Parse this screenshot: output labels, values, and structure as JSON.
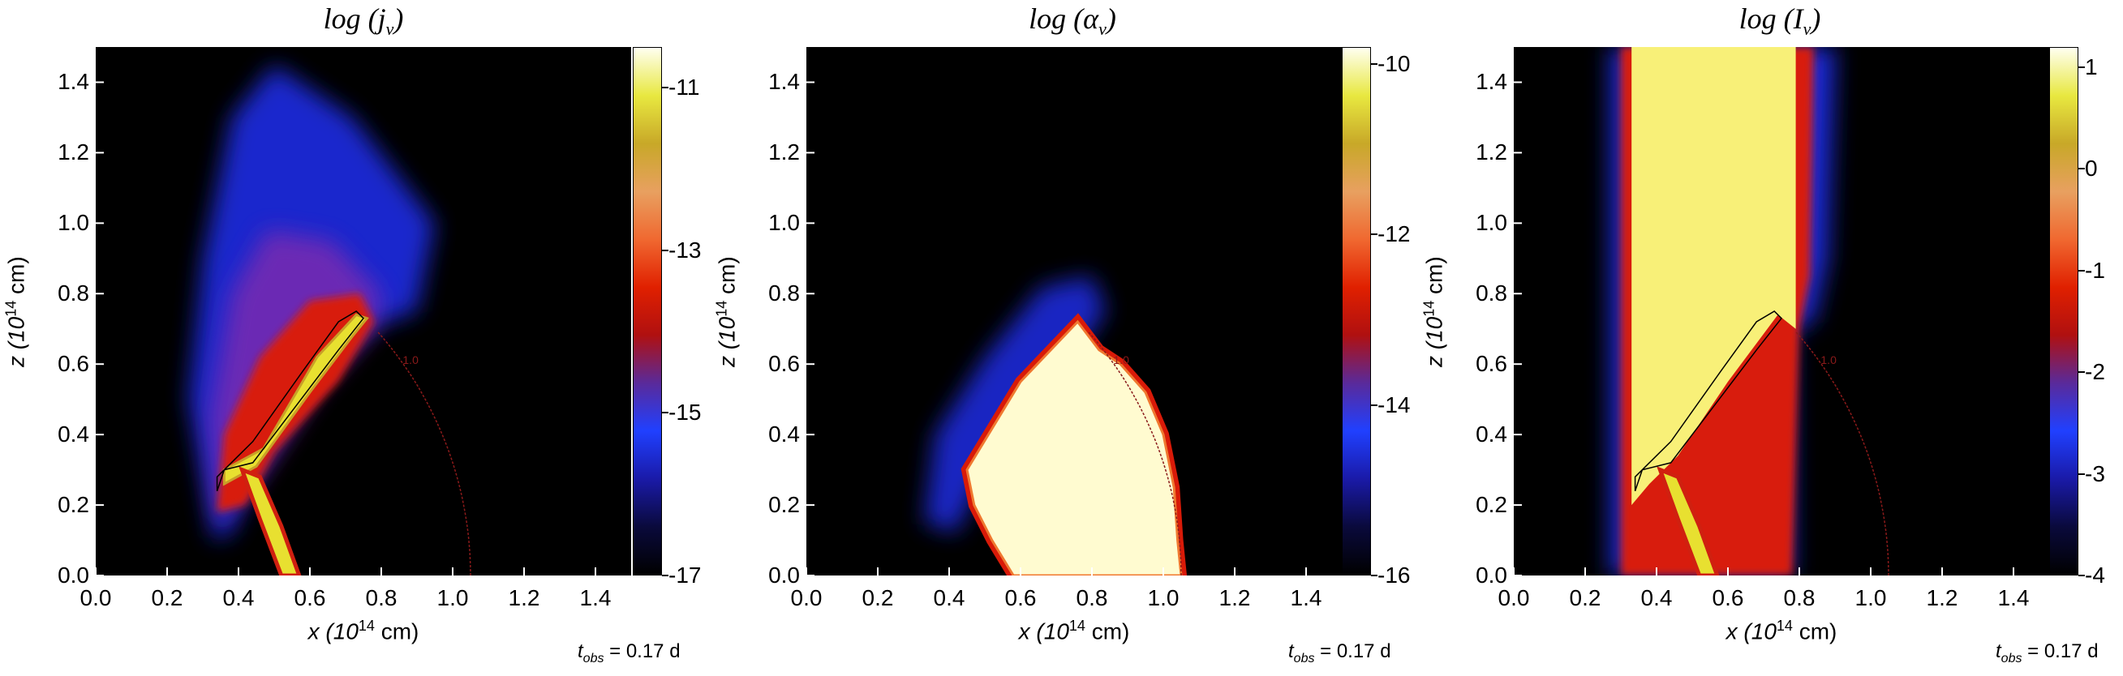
{
  "chart_data": [
    {
      "type": "heatmap",
      "title": "log (j",
      "title_sub": "ν",
      "title_close": ")",
      "xlabel": "x (10",
      "xlabel_exp": "14",
      "xlabel_unit": " cm)",
      "ylabel": "z (10",
      "ylabel_exp": "14",
      "ylabel_unit": " cm)",
      "x_ticks": [
        "0.0",
        "0.2",
        "0.4",
        "0.6",
        "0.8",
        "1.0",
        "1.2",
        "1.4"
      ],
      "y_ticks": [
        "0.0",
        "0.2",
        "0.4",
        "0.6",
        "0.8",
        "1.0",
        "1.2",
        "1.4"
      ],
      "xlim": [
        0,
        1.5
      ],
      "ylim": [
        0,
        1.5
      ],
      "colorbar_ticks": [
        "-11",
        "-13",
        "-15",
        "-17"
      ],
      "colorbar_values": [
        -11,
        -13,
        -15,
        -17
      ],
      "colorbar_range": [
        -17,
        -10.5
      ],
      "tobs_label": "t",
      "tobs_sub": "obs",
      "tobs_value": " = 0.17 d",
      "contour_label": "1.0"
    },
    {
      "type": "heatmap",
      "title": "log (α",
      "title_sub": "ν",
      "title_close": ")",
      "xlabel": "x (10",
      "xlabel_exp": "14",
      "xlabel_unit": " cm)",
      "ylabel": "z (10",
      "ylabel_exp": "14",
      "ylabel_unit": " cm)",
      "x_ticks": [
        "0.0",
        "0.2",
        "0.4",
        "0.6",
        "0.8",
        "1.0",
        "1.2",
        "1.4"
      ],
      "y_ticks": [
        "0.0",
        "0.2",
        "0.4",
        "0.6",
        "0.8",
        "1.0",
        "1.2",
        "1.4"
      ],
      "xlim": [
        0,
        1.5
      ],
      "ylim": [
        0,
        1.5
      ],
      "colorbar_ticks": [
        "-10",
        "-12",
        "-14",
        "-16"
      ],
      "colorbar_values": [
        -10,
        -12,
        -14,
        -16
      ],
      "colorbar_range": [
        -16,
        -9.8
      ],
      "tobs_label": "t",
      "tobs_sub": "obs",
      "tobs_value": " = 0.17 d",
      "contour_label": "1.0"
    },
    {
      "type": "heatmap",
      "title": "log (I",
      "title_sub": "ν",
      "title_close": ")",
      "xlabel": "x (10",
      "xlabel_exp": "14",
      "xlabel_unit": " cm)",
      "ylabel": "z (10",
      "ylabel_exp": "14",
      "ylabel_unit": " cm)",
      "x_ticks": [
        "0.0",
        "0.2",
        "0.4",
        "0.6",
        "0.8",
        "1.0",
        "1.2",
        "1.4"
      ],
      "y_ticks": [
        "0.0",
        "0.2",
        "0.4",
        "0.6",
        "0.8",
        "1.0",
        "1.2",
        "1.4"
      ],
      "xlim": [
        0,
        1.5
      ],
      "ylim": [
        0,
        1.5
      ],
      "colorbar_ticks": [
        "1",
        "0",
        "-1",
        "-2",
        "-3",
        "-4"
      ],
      "colorbar_values": [
        1,
        0,
        -1,
        -2,
        -3,
        -4
      ],
      "colorbar_range": [
        -4,
        1.2
      ],
      "tobs_label": "t",
      "tobs_sub": "obs",
      "tobs_value": " = 0.17 d",
      "contour_label": "1.0"
    }
  ],
  "colors": {
    "background": "#000000",
    "colormap": [
      "#000000",
      "#0a0a3c",
      "#1a1aa8",
      "#2040ff",
      "#5a2a9a",
      "#b01010",
      "#e02000",
      "#f06830",
      "#e8a060",
      "#c8a828",
      "#e8e840",
      "#fffff0"
    ],
    "contour": "#000000",
    "contour_tau": "#8a1a1a"
  }
}
